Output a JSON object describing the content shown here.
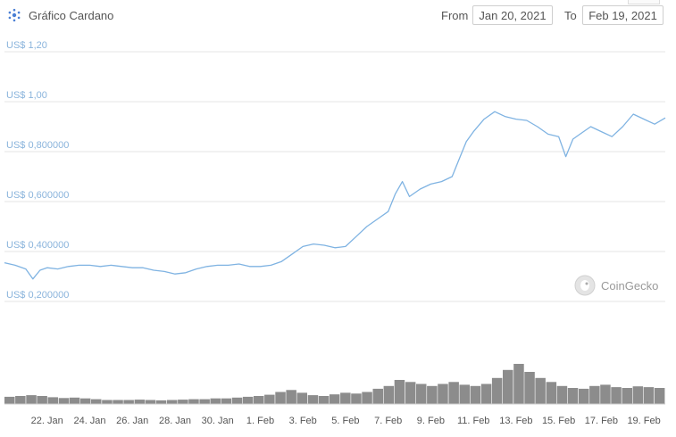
{
  "header": {
    "title": "Gráfico Cardano",
    "from_label": "From",
    "from_value": "Jan 20, 2021",
    "to_label": "To",
    "to_value": "Feb 19, 2021"
  },
  "watermark": "CoinGecko",
  "colors": {
    "line": "#7fb3e2",
    "volume": "#8c8c8c",
    "grid": "#e6e6e6",
    "axis_text": "#8ab4dc"
  },
  "chart_data": {
    "type": "line",
    "title": "Gráfico Cardano",
    "grid": true,
    "y_tick_labels": [
      "US$ 1,20",
      "US$ 1,00",
      "US$ 0,800000",
      "US$ 0,600000",
      "US$ 0,400000",
      "US$ 0,200000"
    ],
    "y_ticks": [
      1.2,
      1.0,
      0.8,
      0.6,
      0.4,
      0.2
    ],
    "ylim": [
      0.2,
      1.2
    ],
    "x_range": [
      "2021-01-20",
      "2021-02-19"
    ],
    "x_tick_labels": [
      "22. Jan",
      "24. Jan",
      "26. Jan",
      "28. Jan",
      "30. Jan",
      "1. Feb",
      "3. Feb",
      "5. Feb",
      "7. Feb",
      "9. Feb",
      "11. Feb",
      "13. Feb",
      "15. Feb",
      "17. Feb",
      "19. Feb"
    ],
    "x_ticks": [
      "2021-01-22",
      "2021-01-24",
      "2021-01-26",
      "2021-01-28",
      "2021-01-30",
      "2021-02-01",
      "2021-02-03",
      "2021-02-05",
      "2021-02-07",
      "2021-02-09",
      "2021-02-11",
      "2021-02-13",
      "2021-02-15",
      "2021-02-17",
      "2021-02-19"
    ],
    "price_series": [
      [
        "2021-01-20",
        0.355
      ],
      [
        "2021-01-20T12:00",
        0.345
      ],
      [
        "2021-01-21",
        0.33
      ],
      [
        "2021-01-21T08:00",
        0.29
      ],
      [
        "2021-01-21T16:00",
        0.325
      ],
      [
        "2021-01-22",
        0.335
      ],
      [
        "2021-01-22T12:00",
        0.33
      ],
      [
        "2021-01-23",
        0.34
      ],
      [
        "2021-01-23T12:00",
        0.345
      ],
      [
        "2021-01-24",
        0.345
      ],
      [
        "2021-01-24T12:00",
        0.34
      ],
      [
        "2021-01-25",
        0.345
      ],
      [
        "2021-01-25T12:00",
        0.34
      ],
      [
        "2021-01-26",
        0.335
      ],
      [
        "2021-01-26T12:00",
        0.335
      ],
      [
        "2021-01-27",
        0.325
      ],
      [
        "2021-01-27T12:00",
        0.32
      ],
      [
        "2021-01-28",
        0.31
      ],
      [
        "2021-01-28T12:00",
        0.315
      ],
      [
        "2021-01-29",
        0.33
      ],
      [
        "2021-01-29T12:00",
        0.34
      ],
      [
        "2021-01-30",
        0.345
      ],
      [
        "2021-01-30T12:00",
        0.345
      ],
      [
        "2021-01-31",
        0.35
      ],
      [
        "2021-01-31T12:00",
        0.34
      ],
      [
        "2021-02-01",
        0.34
      ],
      [
        "2021-02-01T12:00",
        0.345
      ],
      [
        "2021-02-02",
        0.36
      ],
      [
        "2021-02-02T12:00",
        0.39
      ],
      [
        "2021-02-03",
        0.42
      ],
      [
        "2021-02-03T12:00",
        0.43
      ],
      [
        "2021-02-04",
        0.425
      ],
      [
        "2021-02-04T12:00",
        0.415
      ],
      [
        "2021-02-05",
        0.42
      ],
      [
        "2021-02-05T12:00",
        0.46
      ],
      [
        "2021-02-06",
        0.5
      ],
      [
        "2021-02-06T12:00",
        0.53
      ],
      [
        "2021-02-07",
        0.56
      ],
      [
        "2021-02-07T08:00",
        0.63
      ],
      [
        "2021-02-07T16:00",
        0.68
      ],
      [
        "2021-02-08",
        0.62
      ],
      [
        "2021-02-08T12:00",
        0.65
      ],
      [
        "2021-02-09",
        0.67
      ],
      [
        "2021-02-09T12:00",
        0.68
      ],
      [
        "2021-02-10",
        0.7
      ],
      [
        "2021-02-10T08:00",
        0.77
      ],
      [
        "2021-02-10T16:00",
        0.84
      ],
      [
        "2021-02-11",
        0.88
      ],
      [
        "2021-02-11T12:00",
        0.93
      ],
      [
        "2021-02-12",
        0.96
      ],
      [
        "2021-02-12T12:00",
        0.94
      ],
      [
        "2021-02-13",
        0.93
      ],
      [
        "2021-02-13T12:00",
        0.925
      ],
      [
        "2021-02-14",
        0.9
      ],
      [
        "2021-02-14T12:00",
        0.87
      ],
      [
        "2021-02-15",
        0.86
      ],
      [
        "2021-02-15T08:00",
        0.78
      ],
      [
        "2021-02-15T16:00",
        0.85
      ],
      [
        "2021-02-16",
        0.87
      ],
      [
        "2021-02-16T12:00",
        0.9
      ],
      [
        "2021-02-17",
        0.88
      ],
      [
        "2021-02-17T12:00",
        0.86
      ],
      [
        "2021-02-18",
        0.9
      ],
      [
        "2021-02-18T12:00",
        0.95
      ],
      [
        "2021-02-19",
        0.93
      ],
      [
        "2021-02-19T12:00",
        0.91
      ],
      [
        "2021-02-20",
        0.935
      ]
    ],
    "volume_relative": [
      0.18,
      0.2,
      0.22,
      0.2,
      0.17,
      0.15,
      0.16,
      0.14,
      0.12,
      0.1,
      0.1,
      0.1,
      0.11,
      0.1,
      0.09,
      0.1,
      0.11,
      0.12,
      0.12,
      0.14,
      0.14,
      0.16,
      0.18,
      0.2,
      0.23,
      0.3,
      0.35,
      0.28,
      0.22,
      0.2,
      0.24,
      0.28,
      0.26,
      0.3,
      0.38,
      0.45,
      0.6,
      0.55,
      0.5,
      0.45,
      0.5,
      0.55,
      0.48,
      0.45,
      0.5,
      0.65,
      0.85,
      1.0,
      0.8,
      0.65,
      0.55,
      0.45,
      0.4,
      0.38,
      0.45,
      0.48,
      0.42,
      0.4,
      0.44,
      0.42,
      0.4
    ]
  }
}
